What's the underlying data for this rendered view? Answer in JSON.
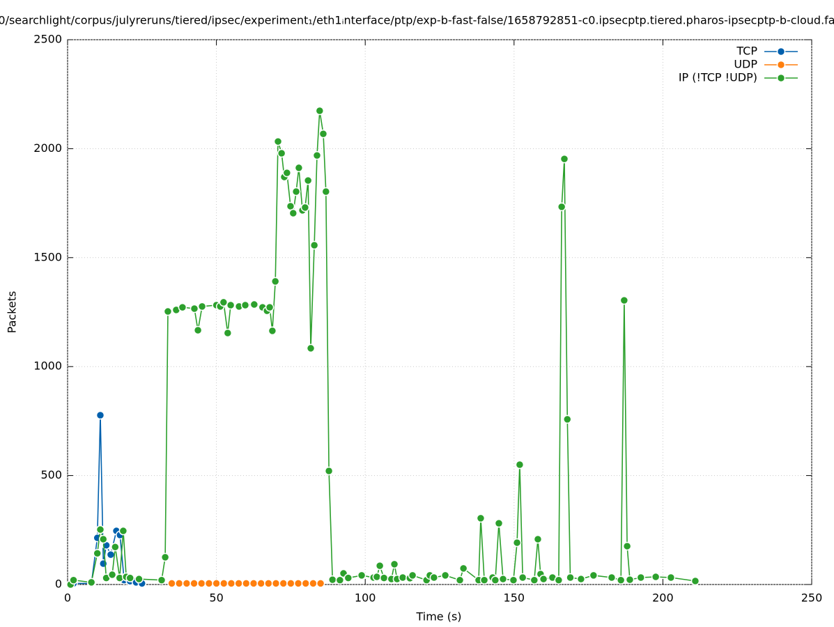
{
  "chart_data": {
    "type": "line",
    "title": "0/searchlight/corpus/julyreruns/tiered/ipsec/experiment₁/eth1ᵢnterface/ptp/exp-b-fast-false/1658792851-c0.ipsecptp.tiered.pharos-ipsecptp-b-cloud.fa",
    "x_label": "Time (s)",
    "y_label": "Packets",
    "xlim": [
      0,
      250
    ],
    "xticks": [
      0,
      50,
      100,
      150,
      200,
      250
    ],
    "ylim": [
      0,
      2500
    ],
    "yticks": [
      0,
      500,
      1000,
      1500,
      2000,
      2500
    ],
    "grid": true,
    "legend": "top-right",
    "series": [
      {
        "name": "TCP",
        "color": "#0060ad",
        "x": [
          1,
          2,
          8,
          10,
          11,
          12,
          13,
          14.5,
          16.4,
          17.6,
          19,
          21,
          23,
          25
        ],
        "values": [
          0,
          5,
          5,
          214,
          777,
          96,
          180,
          137,
          246,
          227,
          20,
          15,
          10,
          5
        ]
      },
      {
        "name": "UDP",
        "color": "#ff7f0e",
        "x": [
          35,
          37.5,
          40,
          42.5,
          45,
          47.5,
          50,
          52.5,
          55,
          57.5,
          60,
          62.5,
          65,
          67.5,
          70,
          72.5,
          75,
          77.5,
          80,
          82.5,
          85
        ],
        "values": [
          5,
          5,
          5,
          5,
          5,
          5,
          5,
          5,
          5,
          5,
          5,
          5,
          5,
          5,
          5,
          5,
          5,
          5,
          5,
          5,
          5
        ]
      },
      {
        "name": "IP (!TCP  !UDP)",
        "color": "#2ca02c",
        "x": [
          1,
          2,
          8,
          10,
          11,
          12,
          13,
          15,
          16,
          17.5,
          18.7,
          19.7,
          21,
          24,
          31.6,
          32.8,
          33.7,
          36.5,
          38.6,
          42.6,
          43.8,
          45.2,
          50,
          51.3,
          52.4,
          53.8,
          54.8,
          57.6,
          59.7,
          62.7,
          65.5,
          67,
          67.9,
          68.8,
          69.8,
          70.7,
          71.9,
          72.8,
          73.7,
          74.9,
          75.8,
          76.8,
          77.7,
          78.9,
          79.8,
          80.8,
          81.7,
          82.9,
          83.8,
          84.7,
          85.9,
          86.8,
          87.8,
          89,
          91.5,
          92.7,
          94.3,
          98.8,
          102.8,
          103.9,
          104.9,
          106.3,
          108.8,
          109.8,
          110.7,
          112.6,
          115,
          115.9,
          120.6,
          121.7,
          123.1,
          126.9,
          131.8,
          133,
          138.1,
          138.8,
          140,
          142.8,
          143.7,
          144.9,
          146.3,
          149.8,
          151,
          151.9,
          152.9,
          156.8,
          158,
          158.9,
          159.9,
          162.9,
          165,
          166,
          166.9,
          167.9,
          168.9,
          172.5,
          176.7,
          182.8,
          185.9,
          187,
          188,
          188.9,
          192.6,
          197.6,
          202.7,
          210.9
        ],
        "values": [
          0,
          20,
          10,
          143,
          252,
          208,
          30,
          45,
          172,
          30,
          246,
          35,
          30,
          25,
          20,
          125,
          1253,
          1260,
          1272,
          1266,
          1167,
          1276,
          1282,
          1276,
          1295,
          1154,
          1282,
          1276,
          1282,
          1285,
          1272,
          1256,
          1272,
          1164,
          1391,
          2033,
          1979,
          1870,
          1889,
          1736,
          1704,
          1803,
          1912,
          1717,
          1730,
          1854,
          1084,
          1557,
          1969,
          2174,
          2068,
          1803,
          521,
          22,
          20,
          51,
          30,
          42,
          32,
          35,
          86,
          30,
          25,
          93,
          25,
          32,
          29,
          42,
          20,
          42,
          32,
          42,
          20,
          74,
          20,
          304,
          20,
          32,
          20,
          281,
          25,
          20,
          192,
          550,
          32,
          20,
          208,
          48,
          25,
          32,
          20,
          1733,
          1953,
          758,
          32,
          25,
          42,
          32,
          20,
          1304,
          176,
          22,
          32,
          35,
          32,
          16
        ]
      }
    ]
  }
}
